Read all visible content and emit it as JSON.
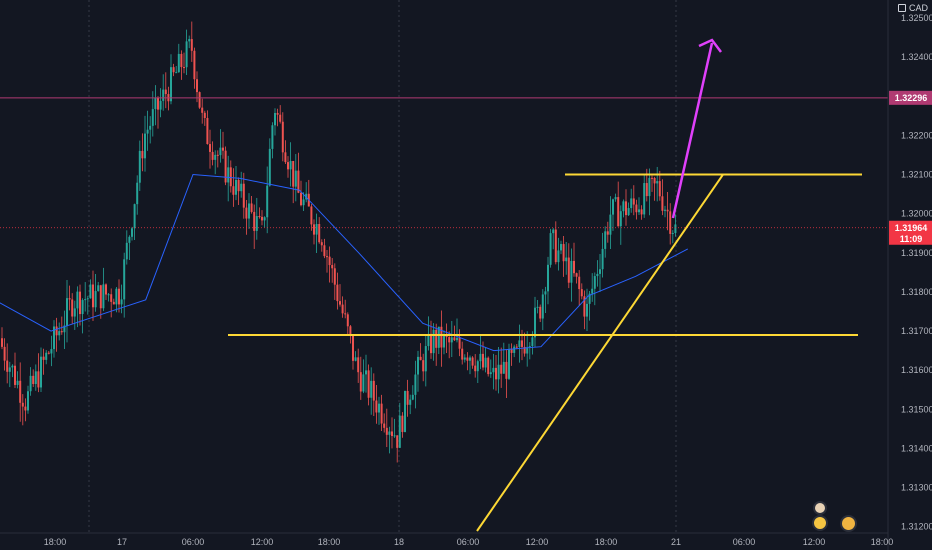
{
  "symbol_currency": "CAD",
  "chart_data": {
    "type": "candlestick",
    "y_ticks": [
      1.325,
      1.324,
      1.322,
      1.321,
      1.32,
      1.319,
      1.318,
      1.317,
      1.316,
      1.315,
      1.314,
      1.313,
      1.312
    ],
    "x_ticks": [
      "18:00",
      "17",
      "06:00",
      "12:00",
      "18:00",
      "18",
      "06:00",
      "12:00",
      "18:00",
      "21",
      "06:00",
      "12:00",
      "18:00"
    ],
    "ylim": [
      1.31184,
      1.32546
    ],
    "resistance_line": {
      "value": 1.32296,
      "label": "1.32296",
      "color": "#b03a72"
    },
    "current_price": {
      "value": 1.31964,
      "label": "1.31964",
      "countdown": "11:09",
      "color": "#f23645"
    },
    "horizontal_levels": [
      1.321,
      1.3169
    ],
    "trendline": {
      "from": [
        "18 12:00",
        1.3111
      ],
      "to": [
        "21 05:00",
        1.321
      ]
    },
    "projection_arrow": {
      "from": [
        "21 00:00",
        1.32
      ],
      "to": [
        "21 03:00",
        1.3252
      ],
      "color": "#e040fb"
    },
    "colors": {
      "up": "#26a69a",
      "down": "#ef5350",
      "ma": "#2962ff",
      "annotation": "#fdd835"
    },
    "moving_average_points": [
      [
        "16 12:00",
        1.318
      ],
      [
        "16 18:00",
        1.317
      ],
      [
        "17 02:00",
        1.3178
      ],
      [
        "17 06:00",
        1.321
      ],
      [
        "17 10:00",
        1.3209
      ],
      [
        "17 15:00",
        1.3206
      ],
      [
        "17 20:00",
        1.319
      ],
      [
        "18 02:00",
        1.3172
      ],
      [
        "18 08:00",
        1.3165
      ],
      [
        "18 12:00",
        1.3166
      ],
      [
        "18 16:00",
        1.3179
      ],
      [
        "18 20:00",
        1.3184
      ],
      [
        "21 01:00",
        1.3191
      ]
    ],
    "price_path": [
      [
        "16 12:00",
        1.318
      ],
      [
        "16 16:00",
        1.3152
      ],
      [
        "16 20:00",
        1.3178
      ],
      [
        "17 00:00",
        1.318
      ],
      [
        "17 02:00",
        1.322
      ],
      [
        "17 04:00",
        1.3232
      ],
      [
        "17 06:00",
        1.3243
      ],
      [
        "17 07:00",
        1.3222
      ],
      [
        "17 10:00",
        1.3205
      ],
      [
        "17 12:00",
        1.3195
      ],
      [
        "17 13:00",
        1.3228
      ],
      [
        "17 15:00",
        1.3205
      ],
      [
        "17 17:00",
        1.3195
      ],
      [
        "17 19:00",
        1.3172
      ],
      [
        "17 20:00",
        1.316
      ],
      [
        "17 22:00",
        1.315
      ],
      [
        "18 00:00",
        1.3143
      ],
      [
        "18 01:00",
        1.3155
      ],
      [
        "18 03:00",
        1.3168
      ],
      [
        "18 06:00",
        1.3165
      ],
      [
        "18 08:00",
        1.3158
      ],
      [
        "18 10:00",
        1.3163
      ],
      [
        "18 12:00",
        1.3175
      ],
      [
        "18 13:00",
        1.3193
      ],
      [
        "18 15:00",
        1.3183
      ],
      [
        "18 16:00",
        1.3175
      ],
      [
        "18 18:00",
        1.32
      ],
      [
        "18 20:00",
        1.3202
      ],
      [
        "18 22:00",
        1.3207
      ],
      [
        "21 00:00",
        1.3196
      ]
    ]
  }
}
